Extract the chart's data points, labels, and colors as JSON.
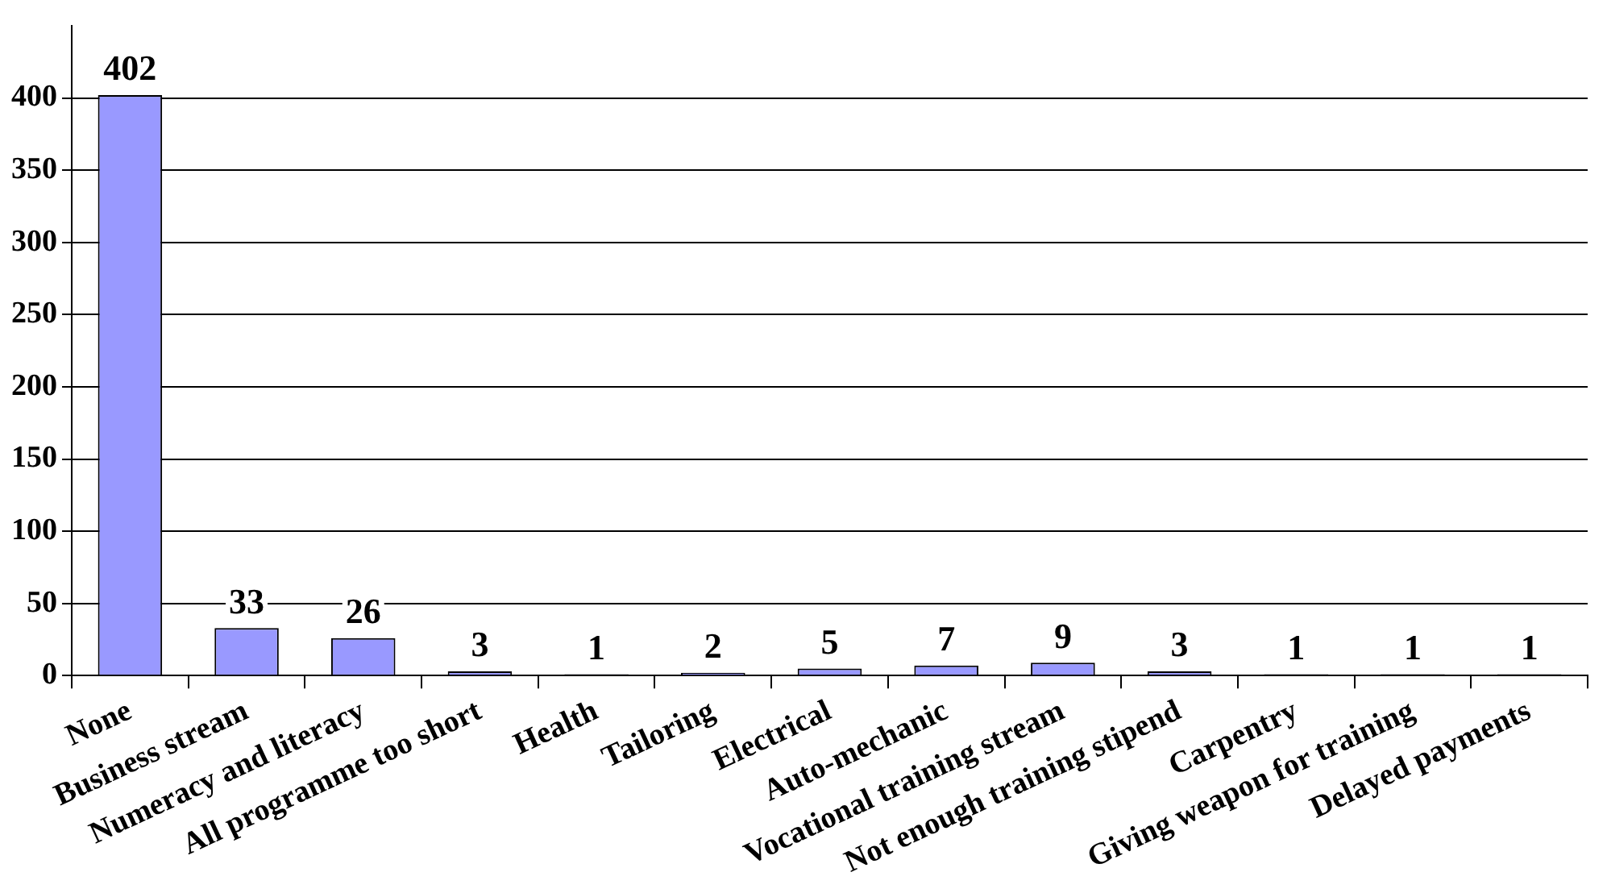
{
  "chart_data": {
    "type": "bar",
    "categories": [
      "None",
      "Business stream",
      "Numeracy and literacy",
      "All programme too short",
      "Health",
      "Tailoring",
      "Electrical",
      "Auto-mechanic",
      "Vocational training stream",
      "Not enough training stipend",
      "Carpentry",
      "Giving weapon for training",
      "Delayed payments"
    ],
    "values": [
      402,
      33,
      26,
      3,
      1,
      2,
      5,
      7,
      9,
      3,
      1,
      1,
      1
    ],
    "color": "#9999ff",
    "ylim": [
      0,
      450
    ],
    "yticks": [
      0,
      50,
      100,
      150,
      200,
      250,
      300,
      350,
      400
    ],
    "grid": "y",
    "data_labels": true
  }
}
